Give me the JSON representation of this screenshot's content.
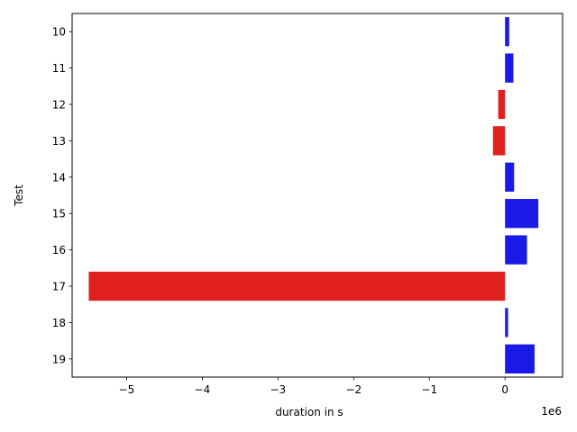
{
  "chart_data": {
    "type": "bar",
    "orientation": "horizontal",
    "categories": [
      "10",
      "11",
      "12",
      "13",
      "14",
      "15",
      "16",
      "17",
      "18",
      "19"
    ],
    "values": [
      55000,
      110000,
      -90000,
      -160000,
      120000,
      440000,
      290000,
      -5500000,
      40000,
      390000
    ],
    "positive_color": "#1a1ae6",
    "negative_color": "#e01f1f",
    "xlabel": "duration in s",
    "ylabel": "Test",
    "offset_text": "1e6",
    "xlim": [
      -5.72,
      0.76
    ],
    "x_ticks": [
      -5,
      -4,
      -3,
      -2,
      -1,
      0
    ],
    "x_tick_labels": [
      "−5",
      "−4",
      "−3",
      "−2",
      "−1",
      "0"
    ],
    "x_scale": 1000000,
    "grid": false,
    "legend": "none"
  }
}
